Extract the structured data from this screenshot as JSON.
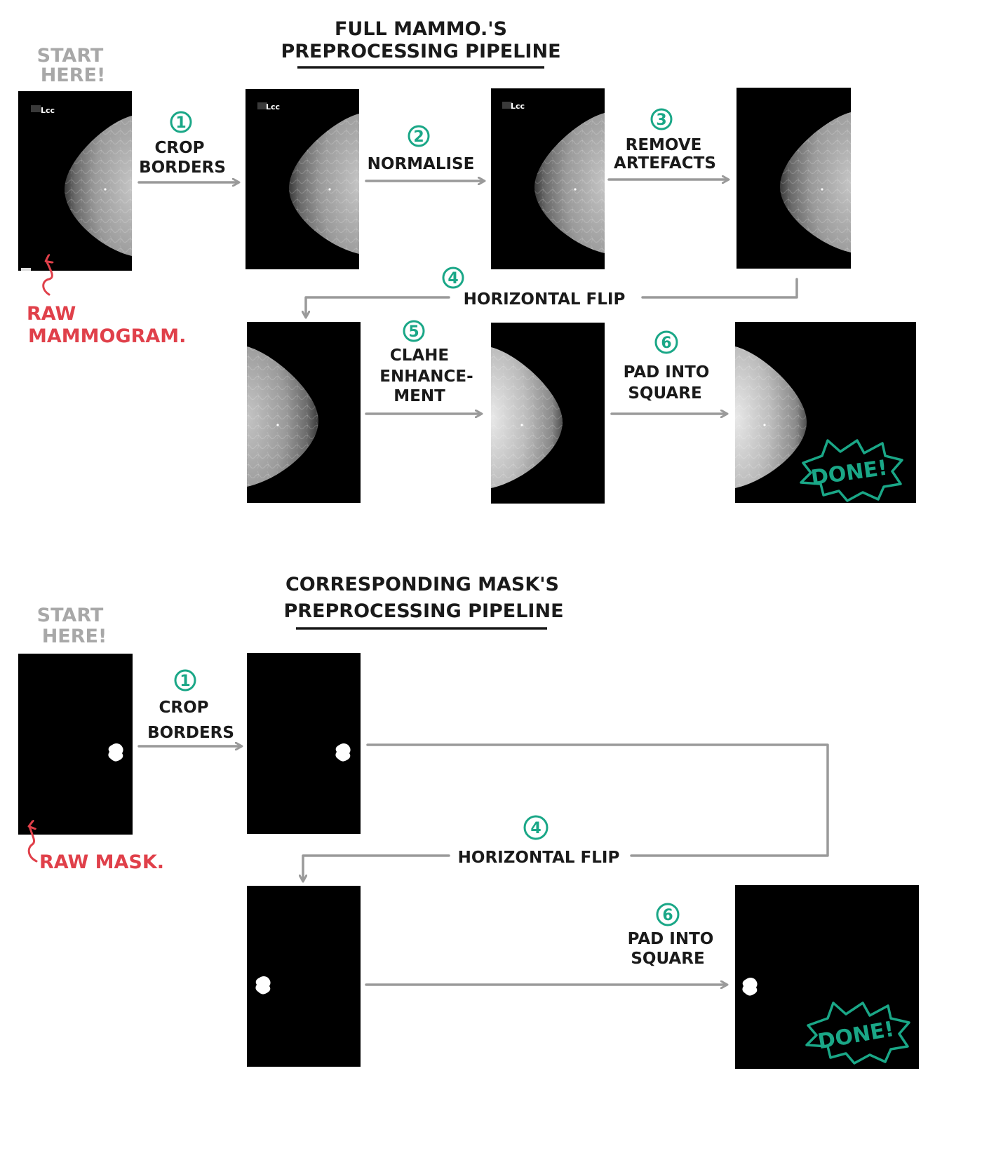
{
  "top": {
    "title_line1": "FULL MAMMO.'S",
    "title_line2": "PREPROCESSING PIPELINE",
    "start_line1": "START",
    "start_line2": "HERE!",
    "raw_line1": "RAW",
    "raw_line2": "MAMMOGRAM.",
    "view_label": "Lcc",
    "steps": [
      {
        "num": "1",
        "line1": "CROP",
        "line2": "BORDERS"
      },
      {
        "num": "2",
        "line1": "NORMALISE"
      },
      {
        "num": "3",
        "line1": "REMOVE",
        "line2": "ARTEFACTS"
      },
      {
        "num": "4",
        "line1": "HORIZONTAL FLIP"
      },
      {
        "num": "5",
        "line1": "CLAHE",
        "line2": "ENHANCE-",
        "line3": "MENT"
      },
      {
        "num": "6",
        "line1": "PAD INTO",
        "line2": "SQUARE"
      }
    ],
    "done": "DONE!"
  },
  "bottom": {
    "title_line1": "CORRESPONDING MASK'S",
    "title_line2": "PREPROCESSING PIPELINE",
    "start_line1": "START",
    "start_line2": "HERE!",
    "raw_label": "RAW MASK.",
    "steps": [
      {
        "num": "1",
        "line1": "CROP",
        "line2": "BORDERS"
      },
      {
        "num": "4",
        "line1": "HORIZONTAL FLIP"
      },
      {
        "num": "6",
        "line1": "PAD INTO",
        "line2": "SQUARE"
      }
    ],
    "done": "DONE!"
  },
  "colors": {
    "accent_green": "#1aa787",
    "raw_red": "#e0404a",
    "start_gray": "#a8a8a8",
    "arrow_gray": "#9a9a9a"
  }
}
